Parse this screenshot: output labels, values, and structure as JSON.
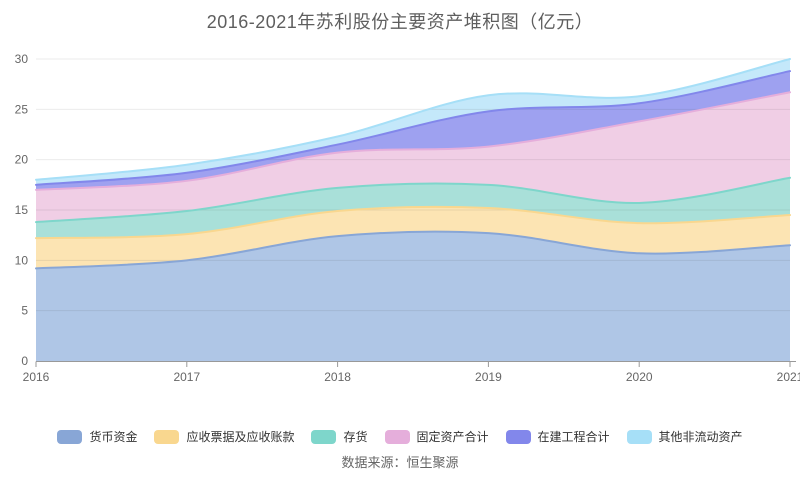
{
  "page": {
    "title": "2016-2021年苏利股份主要资产堆积图（亿元）",
    "source": "数据来源：恒生聚源"
  },
  "chart_data": {
    "type": "area",
    "stacked": true,
    "smooth": true,
    "title": "2016-2021年苏利股份主要资产堆积图（亿元）",
    "xlabel": "",
    "ylabel": "",
    "x": [
      "2016",
      "2017",
      "2018",
      "2019",
      "2020",
      "2021"
    ],
    "ylim": [
      0,
      30
    ],
    "ytick_interval": 5,
    "yticks": [
      0,
      5,
      10,
      15,
      20,
      25,
      30
    ],
    "grid": true,
    "legend_position": "bottom",
    "axis_color": "#999999",
    "tick_label_color": "#666666",
    "series": [
      {
        "name": "货币资金",
        "color": "#88A6D6",
        "fill": "#AFC6E6",
        "values": [
          9.2,
          10.0,
          12.4,
          12.7,
          10.7,
          11.5
        ]
      },
      {
        "name": "应收票据及应收账款",
        "color": "#F9D78F",
        "fill": "#FCE4B3",
        "values": [
          3.0,
          2.6,
          2.5,
          2.5,
          3.0,
          3.0
        ]
      },
      {
        "name": "存货",
        "color": "#7ED6CB",
        "fill": "#A9E0D9",
        "values": [
          1.6,
          2.3,
          2.3,
          2.3,
          2.0,
          3.7
        ]
      },
      {
        "name": "固定资产合计",
        "color": "#E5AEDB",
        "fill": "#F0CEE5",
        "values": [
          3.2,
          3.0,
          3.5,
          3.8,
          8.1,
          8.5
        ]
      },
      {
        "name": "在建工程合计",
        "color": "#8287EB",
        "fill": "#9EA1F0",
        "values": [
          0.5,
          0.8,
          0.8,
          3.5,
          1.8,
          2.1
        ]
      },
      {
        "name": "其他非流动资产",
        "color": "#A6DFF7",
        "fill": "#C4E8FA",
        "values": [
          0.5,
          0.8,
          0.8,
          1.6,
          0.7,
          1.2
        ]
      }
    ],
    "totals": [
      18.0,
      19.5,
      22.3,
      26.4,
      26.3,
      30.0
    ]
  }
}
